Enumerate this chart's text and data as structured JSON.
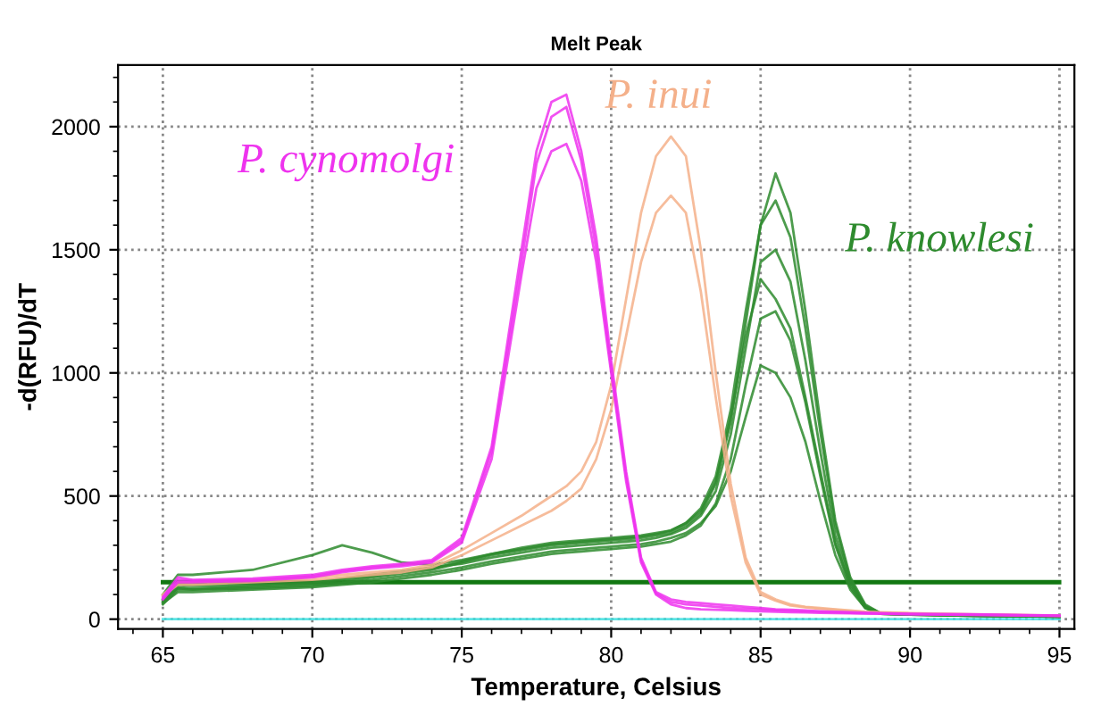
{
  "chart_data": {
    "type": "line",
    "title": "Melt Peak",
    "xlabel": "Temperature, Celsius",
    "ylabel": "-d(RFU)/dT",
    "x": [
      65,
      65.5,
      66,
      68,
      70,
      71,
      72,
      73,
      74,
      75,
      76,
      77,
      77.5,
      78,
      78.5,
      79,
      79.5,
      80,
      80.5,
      81,
      81.5,
      82,
      82.5,
      83,
      83.5,
      84,
      84.5,
      85,
      85.5,
      86,
      86.5,
      87,
      87.5,
      88,
      88.5,
      89,
      90,
      92,
      95
    ],
    "series": [
      {
        "name": "P. cynomolgi",
        "color": "#ee33ee",
        "values": [
          90,
          170,
          160,
          165,
          180,
          200,
          215,
          225,
          240,
          330,
          700,
          1500,
          1900,
          2100,
          2130,
          1900,
          1550,
          1050,
          600,
          250,
          110,
          80,
          70,
          65,
          60,
          55,
          50,
          45,
          40,
          38,
          35,
          32,
          30,
          28,
          26,
          25,
          22,
          20,
          15
        ]
      },
      {
        "color": "#ee33ee",
        "values": [
          85,
          160,
          155,
          160,
          175,
          195,
          210,
          220,
          235,
          320,
          680,
          1450,
          1850,
          2040,
          2080,
          1860,
          1500,
          1020,
          580,
          240,
          105,
          70,
          60,
          55,
          50,
          45,
          42,
          40,
          36,
          34,
          32,
          30,
          28,
          26,
          24,
          23,
          20,
          18,
          14
        ]
      },
      {
        "color": "#ee33ee",
        "values": [
          80,
          150,
          150,
          155,
          170,
          190,
          205,
          215,
          230,
          310,
          650,
          1400,
          1750,
          1900,
          1930,
          1780,
          1450,
          1000,
          560,
          230,
          100,
          60,
          45,
          40,
          38,
          36,
          34,
          32,
          30,
          28,
          27,
          26,
          25,
          24,
          23,
          22,
          20,
          17,
          13
        ]
      },
      {
        "name": "P. inui",
        "color": "#f4b08a",
        "values": [
          100,
          150,
          150,
          160,
          170,
          180,
          190,
          200,
          220,
          280,
          350,
          420,
          460,
          500,
          540,
          600,
          720,
          950,
          1300,
          1650,
          1880,
          1960,
          1880,
          1500,
          1000,
          550,
          250,
          110,
          80,
          60,
          50,
          45,
          40,
          35,
          30,
          28,
          25,
          20,
          15
        ]
      },
      {
        "color": "#f4b08a",
        "values": [
          95,
          140,
          140,
          150,
          160,
          170,
          180,
          190,
          210,
          260,
          320,
          380,
          410,
          440,
          480,
          530,
          650,
          850,
          1150,
          1450,
          1650,
          1720,
          1650,
          1330,
          900,
          500,
          230,
          100,
          75,
          55,
          48,
          42,
          38,
          33,
          29,
          26,
          23,
          19,
          14
        ]
      },
      {
        "name": "P. knowlesi",
        "color": "#2e8b2e",
        "values": [
          60,
          120,
          120,
          130,
          140,
          150,
          170,
          185,
          200,
          230,
          260,
          280,
          290,
          300,
          305,
          310,
          315,
          320,
          325,
          330,
          340,
          350,
          380,
          430,
          550,
          800,
          1200,
          1600,
          1810,
          1650,
          1250,
          800,
          400,
          170,
          60,
          25,
          20,
          15,
          10
        ]
      },
      {
        "color": "#2e8b2e",
        "values": [
          70,
          130,
          125,
          135,
          145,
          160,
          175,
          190,
          205,
          235,
          265,
          290,
          300,
          310,
          315,
          320,
          325,
          330,
          335,
          340,
          350,
          360,
          390,
          450,
          580,
          850,
          1250,
          1600,
          1700,
          1550,
          1180,
          760,
          380,
          160,
          55,
          25,
          20,
          15,
          10
        ]
      },
      {
        "color": "#2e8b2e",
        "values": [
          80,
          140,
          135,
          140,
          150,
          165,
          180,
          195,
          210,
          225,
          250,
          270,
          280,
          290,
          295,
          300,
          305,
          310,
          315,
          320,
          330,
          345,
          370,
          420,
          520,
          750,
          1100,
          1450,
          1500,
          1370,
          1050,
          680,
          340,
          150,
          50,
          22,
          18,
          14,
          10
        ]
      },
      {
        "color": "#2e8b2e",
        "values": [
          65,
          110,
          110,
          120,
          130,
          140,
          150,
          165,
          180,
          200,
          225,
          245,
          255,
          265,
          270,
          275,
          280,
          285,
          290,
          295,
          305,
          315,
          340,
          380,
          470,
          650,
          950,
          1220,
          1250,
          1130,
          880,
          580,
          300,
          130,
          45,
          22,
          18,
          14,
          10
        ]
      },
      {
        "color": "#2e8b2e",
        "values": [
          75,
          125,
          120,
          125,
          135,
          145,
          160,
          175,
          190,
          210,
          235,
          255,
          265,
          275,
          280,
          285,
          290,
          295,
          300,
          305,
          315,
          330,
          350,
          390,
          460,
          600,
          820,
          1030,
          1000,
          900,
          720,
          480,
          260,
          120,
          45,
          22,
          18,
          14,
          10
        ]
      },
      {
        "color": "#2e8b2e",
        "values": [
          100,
          180,
          180,
          200,
          260,
          300,
          270,
          230,
          220,
          240,
          265,
          285,
          295,
          305,
          310,
          315,
          320,
          325,
          330,
          335,
          345,
          360,
          390,
          440,
          560,
          820,
          1150,
          1380,
          1300,
          1180,
          900,
          600,
          310,
          140,
          50,
          23,
          19,
          15,
          10
        ]
      },
      {
        "color": "#40e0e0",
        "values": [
          0,
          0,
          0,
          0,
          0,
          0,
          0,
          0,
          0,
          0,
          0,
          0,
          0,
          0,
          0,
          0,
          0,
          0,
          0,
          0,
          0,
          0,
          0,
          0,
          0,
          0,
          0,
          0,
          0,
          0,
          0,
          0,
          0,
          0,
          0,
          0,
          0,
          0,
          0
        ]
      }
    ],
    "ref_lines": [
      {
        "axis": "y",
        "value": 150,
        "color": "#117711"
      }
    ],
    "xlim": [
      63.5,
      95.5
    ],
    "ylim": [
      -40,
      2250
    ],
    "xticks": [
      65,
      70,
      75,
      80,
      85,
      90,
      95
    ],
    "yticks": [
      0,
      500,
      1000,
      1500,
      2000
    ],
    "grid": true,
    "legend": false,
    "marker": "none",
    "line_style": "solid"
  }
}
